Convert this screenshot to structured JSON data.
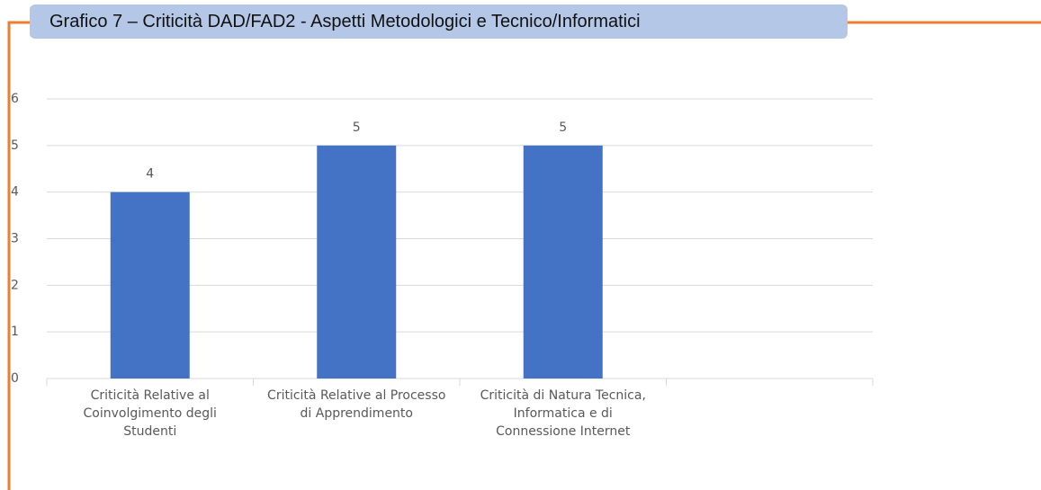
{
  "chart_data": {
    "type": "bar",
    "title": "Grafico 7 – Criticità DAD/FAD2 - Aspetti Metodologici e Tecnico/Informatici",
    "categories": [
      "Criticità Relative al Coinvolgimento degli Studenti",
      "Criticità Relative al Processo di Apprendimento",
      "Criticità di Natura Tecnica, Informatica e di Connessione Internet",
      null
    ],
    "values": [
      4,
      5,
      5,
      null
    ],
    "color": "#4472c4",
    "ylim": [
      0,
      6
    ],
    "yticks": [
      0,
      1,
      2,
      3,
      4,
      5,
      6
    ],
    "grid": true
  }
}
